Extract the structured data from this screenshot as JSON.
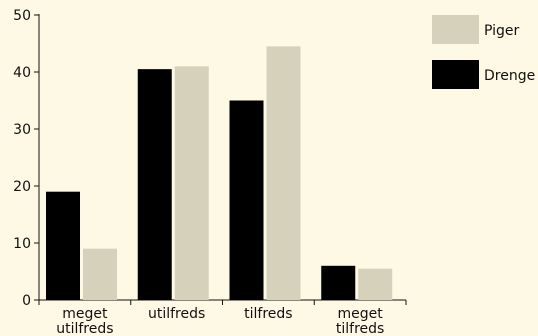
{
  "colors": {
    "background": "#FEF9E4",
    "axis": "#111111",
    "Piger": "#D6D1BB",
    "Drenge": "#000000"
  },
  "chart_data": {
    "type": "bar",
    "categories": [
      [
        "meget",
        "utilfreds"
      ],
      [
        "utilfreds"
      ],
      [
        "tilfreds"
      ],
      [
        "meget",
        "tilfreds"
      ]
    ],
    "series": [
      {
        "name": "Drenge",
        "values": [
          19,
          40.5,
          35,
          6
        ]
      },
      {
        "name": "Piger",
        "values": [
          9,
          41,
          44.5,
          5.5
        ]
      }
    ],
    "ylim": [
      0,
      50
    ],
    "yticks": [
      0,
      10,
      20,
      30,
      40,
      50
    ],
    "legend": {
      "placement": "top-right",
      "entries": [
        "Piger",
        "Drenge"
      ]
    },
    "grid": false,
    "title": "",
    "xlabel": "",
    "ylabel": ""
  }
}
